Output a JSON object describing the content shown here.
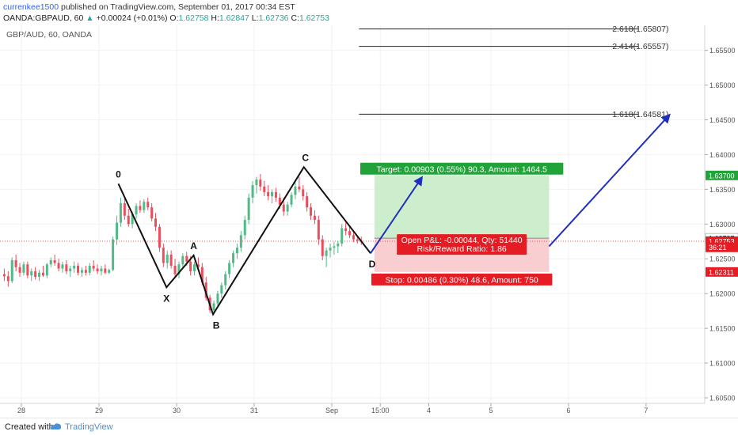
{
  "header": {
    "author": "currenkee1500",
    "published_text": "published on TradingView.com, September 01, 2017 00:34 EST",
    "symbol": "OANDA:GBPAUD, 60",
    "change_arrow": "▲",
    "change": "+0.00024 (+0.01%)",
    "o_label": "O:",
    "o_value": "1.62758",
    "h_label": "H:",
    "h_value": "1.62847",
    "l_label": "L:",
    "l_value": "1.62736",
    "c_label": "C:",
    "c_value": "1.62753",
    "last_price": "1.62753"
  },
  "chart_data": {
    "type": "candlestick",
    "title": "GBP/AUD, 60, OANDA",
    "ylim": [
      1.6042,
      1.6586
    ],
    "y_ticks": [
      1.605,
      1.61,
      1.615,
      1.62,
      1.625,
      1.63,
      1.635,
      1.64,
      1.645,
      1.65,
      1.655
    ],
    "y_tick_labels": [
      "1.60500",
      "1.61000",
      "1.61500",
      "1.62000",
      "1.62500",
      "1.63000",
      "1.63500",
      "1.64000",
      "1.64500",
      "1.65000",
      "1.65500"
    ],
    "x_ticks": [
      {
        "label": "28",
        "t": 0.0
      },
      {
        "label": "29",
        "t": 1.0
      },
      {
        "label": "30",
        "t": 2.0
      },
      {
        "label": "31",
        "t": 3.0
      },
      {
        "label": "Sep",
        "t": 4.0
      },
      {
        "label": "15:00",
        "t": 4.625
      },
      {
        "label": "4",
        "t": 5.25
      },
      {
        "label": "5",
        "t": 6.05
      },
      {
        "label": "6",
        "t": 7.05
      },
      {
        "label": "7",
        "t": 8.05
      }
    ],
    "candles": [
      {
        "t": -0.22,
        "o": 1.6228,
        "h": 1.6236,
        "l": 1.6218,
        "c": 1.6225
      },
      {
        "t": -0.17,
        "o": 1.6225,
        "h": 1.6232,
        "l": 1.621,
        "c": 1.6218
      },
      {
        "t": -0.12,
        "o": 1.6218,
        "h": 1.6252,
        "l": 1.6215,
        "c": 1.6248
      },
      {
        "t": -0.07,
        "o": 1.6248,
        "h": 1.6256,
        "l": 1.6232,
        "c": 1.6238
      },
      {
        "t": -0.02,
        "o": 1.6238,
        "h": 1.6244,
        "l": 1.6224,
        "c": 1.623
      },
      {
        "t": 0.03,
        "o": 1.623,
        "h": 1.6246,
        "l": 1.6226,
        "c": 1.6242
      },
      {
        "t": 0.08,
        "o": 1.6242,
        "h": 1.6246,
        "l": 1.6222,
        "c": 1.6226
      },
      {
        "t": 0.13,
        "o": 1.6226,
        "h": 1.6236,
        "l": 1.6218,
        "c": 1.6232
      },
      {
        "t": 0.18,
        "o": 1.6232,
        "h": 1.6238,
        "l": 1.622,
        "c": 1.6224
      },
      {
        "t": 0.23,
        "o": 1.6224,
        "h": 1.6234,
        "l": 1.6218,
        "c": 1.623
      },
      {
        "t": 0.28,
        "o": 1.623,
        "h": 1.624,
        "l": 1.6224,
        "c": 1.6226
      },
      {
        "t": 0.33,
        "o": 1.6226,
        "h": 1.6244,
        "l": 1.6222,
        "c": 1.6242
      },
      {
        "t": 0.38,
        "o": 1.6242,
        "h": 1.6252,
        "l": 1.6238,
        "c": 1.6248
      },
      {
        "t": 0.43,
        "o": 1.6248,
        "h": 1.6256,
        "l": 1.624,
        "c": 1.6244
      },
      {
        "t": 0.48,
        "o": 1.6244,
        "h": 1.625,
        "l": 1.6232,
        "c": 1.6236
      },
      {
        "t": 0.53,
        "o": 1.6236,
        "h": 1.6246,
        "l": 1.623,
        "c": 1.6242
      },
      {
        "t": 0.58,
        "o": 1.6242,
        "h": 1.6248,
        "l": 1.6228,
        "c": 1.6232
      },
      {
        "t": 0.63,
        "o": 1.6232,
        "h": 1.624,
        "l": 1.6224,
        "c": 1.6236
      },
      {
        "t": 0.68,
        "o": 1.6236,
        "h": 1.6246,
        "l": 1.623,
        "c": 1.624
      },
      {
        "t": 0.73,
        "o": 1.624,
        "h": 1.6244,
        "l": 1.6226,
        "c": 1.623
      },
      {
        "t": 0.78,
        "o": 1.623,
        "h": 1.6238,
        "l": 1.6224,
        "c": 1.6234
      },
      {
        "t": 0.83,
        "o": 1.6234,
        "h": 1.624,
        "l": 1.6226,
        "c": 1.623
      },
      {
        "t": 0.88,
        "o": 1.623,
        "h": 1.6244,
        "l": 1.6226,
        "c": 1.624
      },
      {
        "t": 0.93,
        "o": 1.624,
        "h": 1.6248,
        "l": 1.6232,
        "c": 1.6236
      },
      {
        "t": 0.98,
        "o": 1.6236,
        "h": 1.6242,
        "l": 1.6228,
        "c": 1.6232
      },
      {
        "t": 1.03,
        "o": 1.6232,
        "h": 1.624,
        "l": 1.6226,
        "c": 1.6236
      },
      {
        "t": 1.08,
        "o": 1.6236,
        "h": 1.6242,
        "l": 1.6228,
        "c": 1.623
      },
      {
        "t": 1.13,
        "o": 1.623,
        "h": 1.6236,
        "l": 1.6228,
        "c": 1.6234
      },
      {
        "t": 1.18,
        "o": 1.6234,
        "h": 1.6282,
        "l": 1.6232,
        "c": 1.6278
      },
      {
        "t": 1.23,
        "o": 1.6278,
        "h": 1.6312,
        "l": 1.627,
        "c": 1.6302
      },
      {
        "t": 1.28,
        "o": 1.6302,
        "h": 1.6338,
        "l": 1.6296,
        "c": 1.633
      },
      {
        "t": 1.33,
        "o": 1.633,
        "h": 1.634,
        "l": 1.6306,
        "c": 1.6312
      },
      {
        "t": 1.38,
        "o": 1.6312,
        "h": 1.6322,
        "l": 1.6296,
        "c": 1.63
      },
      {
        "t": 1.43,
        "o": 1.63,
        "h": 1.6318,
        "l": 1.6294,
        "c": 1.6314
      },
      {
        "t": 1.48,
        "o": 1.6314,
        "h": 1.633,
        "l": 1.6308,
        "c": 1.6326
      },
      {
        "t": 1.53,
        "o": 1.6326,
        "h": 1.6334,
        "l": 1.6316,
        "c": 1.632
      },
      {
        "t": 1.58,
        "o": 1.632,
        "h": 1.6336,
        "l": 1.6316,
        "c": 1.6332
      },
      {
        "t": 1.63,
        "o": 1.6332,
        "h": 1.6338,
        "l": 1.632,
        "c": 1.6324
      },
      {
        "t": 1.68,
        "o": 1.6324,
        "h": 1.633,
        "l": 1.6304,
        "c": 1.6308
      },
      {
        "t": 1.73,
        "o": 1.6308,
        "h": 1.6316,
        "l": 1.629,
        "c": 1.6296
      },
      {
        "t": 1.78,
        "o": 1.6296,
        "h": 1.63,
        "l": 1.626,
        "c": 1.6266
      },
      {
        "t": 1.83,
        "o": 1.6266,
        "h": 1.6272,
        "l": 1.6238,
        "c": 1.6244
      },
      {
        "t": 1.88,
        "o": 1.6244,
        "h": 1.6262,
        "l": 1.6236,
        "c": 1.6256
      },
      {
        "t": 1.93,
        "o": 1.6256,
        "h": 1.6262,
        "l": 1.6236,
        "c": 1.624
      },
      {
        "t": 1.98,
        "o": 1.624,
        "h": 1.625,
        "l": 1.6222,
        "c": 1.6228
      },
      {
        "t": 2.03,
        "o": 1.6228,
        "h": 1.6246,
        "l": 1.6222,
        "c": 1.6242
      },
      {
        "t": 2.08,
        "o": 1.6242,
        "h": 1.6258,
        "l": 1.6238,
        "c": 1.6254
      },
      {
        "t": 2.13,
        "o": 1.6254,
        "h": 1.626,
        "l": 1.624,
        "c": 1.6246
      },
      {
        "t": 2.18,
        "o": 1.6246,
        "h": 1.6254,
        "l": 1.6226,
        "c": 1.6232
      },
      {
        "t": 2.23,
        "o": 1.6232,
        "h": 1.6246,
        "l": 1.6226,
        "c": 1.6242
      },
      {
        "t": 2.28,
        "o": 1.6242,
        "h": 1.6252,
        "l": 1.6234,
        "c": 1.6238
      },
      {
        "t": 2.33,
        "o": 1.6238,
        "h": 1.6244,
        "l": 1.6212,
        "c": 1.6216
      },
      {
        "t": 2.38,
        "o": 1.6216,
        "h": 1.6224,
        "l": 1.619,
        "c": 1.6194
      },
      {
        "t": 2.43,
        "o": 1.6194,
        "h": 1.6198,
        "l": 1.6172,
        "c": 1.6176
      },
      {
        "t": 2.48,
        "o": 1.6176,
        "h": 1.619,
        "l": 1.617,
        "c": 1.6186
      },
      {
        "t": 2.53,
        "o": 1.6186,
        "h": 1.6204,
        "l": 1.618,
        "c": 1.62
      },
      {
        "t": 2.58,
        "o": 1.62,
        "h": 1.6216,
        "l": 1.6194,
        "c": 1.6212
      },
      {
        "t": 2.63,
        "o": 1.6212,
        "h": 1.6232,
        "l": 1.6206,
        "c": 1.6228
      },
      {
        "t": 2.68,
        "o": 1.6228,
        "h": 1.6248,
        "l": 1.6222,
        "c": 1.6244
      },
      {
        "t": 2.73,
        "o": 1.6244,
        "h": 1.6262,
        "l": 1.6238,
        "c": 1.6258
      },
      {
        "t": 2.78,
        "o": 1.6258,
        "h": 1.6272,
        "l": 1.625,
        "c": 1.6266
      },
      {
        "t": 2.83,
        "o": 1.6266,
        "h": 1.629,
        "l": 1.626,
        "c": 1.6284
      },
      {
        "t": 2.88,
        "o": 1.6284,
        "h": 1.6312,
        "l": 1.6278,
        "c": 1.6306
      },
      {
        "t": 2.93,
        "o": 1.6306,
        "h": 1.6344,
        "l": 1.63,
        "c": 1.6338
      },
      {
        "t": 2.98,
        "o": 1.6338,
        "h": 1.6362,
        "l": 1.633,
        "c": 1.6356
      },
      {
        "t": 3.03,
        "o": 1.6356,
        "h": 1.6368,
        "l": 1.6344,
        "c": 1.6364
      },
      {
        "t": 3.08,
        "o": 1.6364,
        "h": 1.6372,
        "l": 1.6348,
        "c": 1.6354
      },
      {
        "t": 3.13,
        "o": 1.6354,
        "h": 1.6362,
        "l": 1.634,
        "c": 1.6346
      },
      {
        "t": 3.18,
        "o": 1.6346,
        "h": 1.6356,
        "l": 1.6334,
        "c": 1.634
      },
      {
        "t": 3.23,
        "o": 1.634,
        "h": 1.635,
        "l": 1.633,
        "c": 1.6346
      },
      {
        "t": 3.28,
        "o": 1.6346,
        "h": 1.6352,
        "l": 1.6332,
        "c": 1.6338
      },
      {
        "t": 3.33,
        "o": 1.6338,
        "h": 1.6344,
        "l": 1.6322,
        "c": 1.6328
      },
      {
        "t": 3.38,
        "o": 1.6328,
        "h": 1.6338,
        "l": 1.6312,
        "c": 1.6318
      },
      {
        "t": 3.43,
        "o": 1.6318,
        "h": 1.6332,
        "l": 1.6312,
        "c": 1.6328
      },
      {
        "t": 3.48,
        "o": 1.6328,
        "h": 1.6346,
        "l": 1.6324,
        "c": 1.6342
      },
      {
        "t": 3.53,
        "o": 1.6342,
        "h": 1.636,
        "l": 1.6336,
        "c": 1.6354
      },
      {
        "t": 3.58,
        "o": 1.6354,
        "h": 1.6368,
        "l": 1.6346,
        "c": 1.635
      },
      {
        "t": 3.63,
        "o": 1.635,
        "h": 1.6356,
        "l": 1.6334,
        "c": 1.634
      },
      {
        "t": 3.68,
        "o": 1.634,
        "h": 1.6346,
        "l": 1.6318,
        "c": 1.6324
      },
      {
        "t": 3.73,
        "o": 1.6324,
        "h": 1.633,
        "l": 1.6306,
        "c": 1.6312
      },
      {
        "t": 3.78,
        "o": 1.6312,
        "h": 1.632,
        "l": 1.63,
        "c": 1.6306
      },
      {
        "t": 3.83,
        "o": 1.6306,
        "h": 1.6312,
        "l": 1.627,
        "c": 1.6278
      },
      {
        "t": 3.88,
        "o": 1.6278,
        "h": 1.6284,
        "l": 1.6248,
        "c": 1.6254
      },
      {
        "t": 3.93,
        "o": 1.6254,
        "h": 1.6266,
        "l": 1.6238,
        "c": 1.6262
      },
      {
        "t": 3.98,
        "o": 1.6262,
        "h": 1.6272,
        "l": 1.6252,
        "c": 1.6266
      },
      {
        "t": 4.03,
        "o": 1.6266,
        "h": 1.6274,
        "l": 1.6256,
        "c": 1.6268
      },
      {
        "t": 4.08,
        "o": 1.6268,
        "h": 1.6276,
        "l": 1.6258,
        "c": 1.6272
      },
      {
        "t": 4.13,
        "o": 1.6272,
        "h": 1.63,
        "l": 1.6268,
        "c": 1.6294
      },
      {
        "t": 4.18,
        "o": 1.6294,
        "h": 1.6302,
        "l": 1.6284,
        "c": 1.629
      },
      {
        "t": 4.23,
        "o": 1.629,
        "h": 1.6298,
        "l": 1.628,
        "c": 1.6284
      },
      {
        "t": 4.28,
        "o": 1.6284,
        "h": 1.629,
        "l": 1.6274,
        "c": 1.6278
      },
      {
        "t": 4.33,
        "o": 1.6278,
        "h": 1.6284,
        "l": 1.6272,
        "c": 1.6276
      },
      {
        "t": 4.38,
        "o": 1.6276,
        "h": 1.6282,
        "l": 1.627,
        "c": 1.6275
      }
    ],
    "pattern": {
      "points": [
        {
          "label": "0",
          "t": 1.25,
          "price": 1.6358
        },
        {
          "label": "X",
          "t": 1.87,
          "price": 1.6209
        },
        {
          "label": "A",
          "t": 2.22,
          "price": 1.6255
        },
        {
          "label": "B",
          "t": 2.47,
          "price": 1.617
        },
        {
          "label": "C",
          "t": 3.64,
          "price": 1.6382
        },
        {
          "label": "D",
          "t": 4.5,
          "price": 1.6258
        }
      ]
    },
    "fib_levels": [
      {
        "label": "2.618(1.65807)",
        "price": 1.65807
      },
      {
        "label": "2.414(1.65557)",
        "price": 1.65557
      },
      {
        "label": "1.618(1.64581)",
        "price": 1.64581
      }
    ],
    "position": {
      "t_start": 4.55,
      "t_end": 6.8,
      "entry": 1.62797,
      "target": 1.637,
      "stop": 1.62311,
      "target_text": "Target: 0.00903 (0.55%) 90.3, Amount: 1464.5",
      "pnl_text": "Open P&L: -0.00044, Qty: 51440",
      "rr_text": "Risk/Reward Ratio: 1.86",
      "stop_text": "Stop: 0.00486 (0.30%) 48.6, Amount: 750"
    },
    "projections": [
      {
        "from_t": 4.5,
        "from_price": 1.6258,
        "to_t": 5.16,
        "to_price": 1.6367
      },
      {
        "from_t": 6.8,
        "from_price": 1.6268,
        "to_t": 8.35,
        "to_price": 1.6457
      }
    ],
    "price_labels": [
      {
        "text": "1.63700",
        "price": 1.637,
        "color": "#26a69a"
      },
      {
        "text": "1.62797",
        "price": 1.62797,
        "color": "#ffffff"
      },
      {
        "text": "1.62753",
        "price": 1.62753,
        "color": "#ef5350"
      },
      {
        "text": "36:21",
        "price": 1.62665,
        "color": "#ef5350"
      },
      {
        "text": "1.62311",
        "price": 1.62311,
        "color": "#ef5350"
      }
    ],
    "current_price": 1.62753
  },
  "footer": {
    "created_with": "Created with",
    "brand": "TradingView"
  },
  "colors": {
    "up": "#53b987",
    "down": "#eb4d5c",
    "projection": "#1e2fbd",
    "target_zone": "#c8ecc8",
    "stop_zone": "#f8c9cb"
  }
}
